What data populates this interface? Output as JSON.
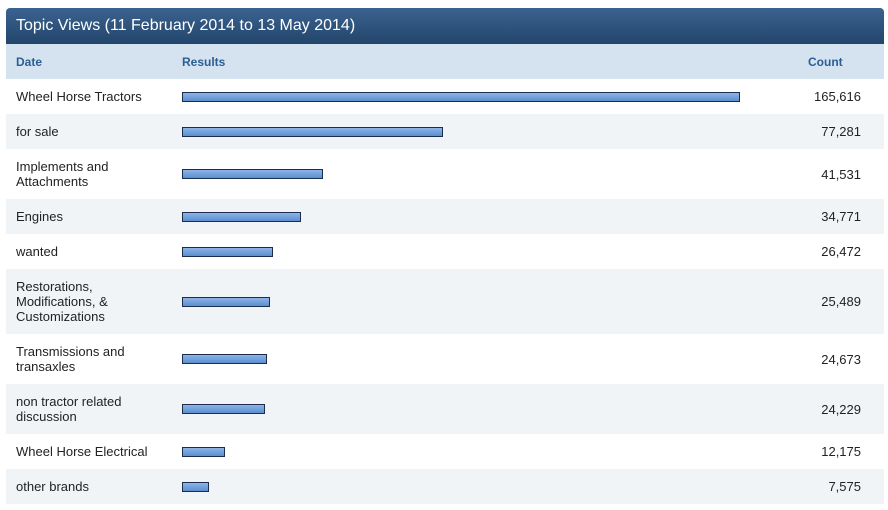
{
  "chart_data": {
    "type": "bar",
    "orientation": "horizontal",
    "title": "Topic Views (11 February 2014 to 13 May 2014)",
    "headers": [
      "Date",
      "Results",
      "Count"
    ],
    "color": "#5b8fd0",
    "categories": [
      "Wheel Horse Tractors",
      "for sale",
      "Implements and Attachments",
      "Engines",
      "wanted",
      "Restorations, Modifications, & Customizations",
      "Transmissions and transaxles",
      "non tractor related discussion",
      "Wheel Horse Electrical",
      "other brands"
    ],
    "values": [
      165616,
      77281,
      41531,
      34771,
      26472,
      25489,
      24673,
      24229,
      12175,
      7575
    ],
    "value_labels": [
      "165,616",
      "77,281",
      "41,531",
      "34,771",
      "26,472",
      "25,489",
      "24,673",
      "24,229",
      "12,175",
      "7,575"
    ]
  }
}
